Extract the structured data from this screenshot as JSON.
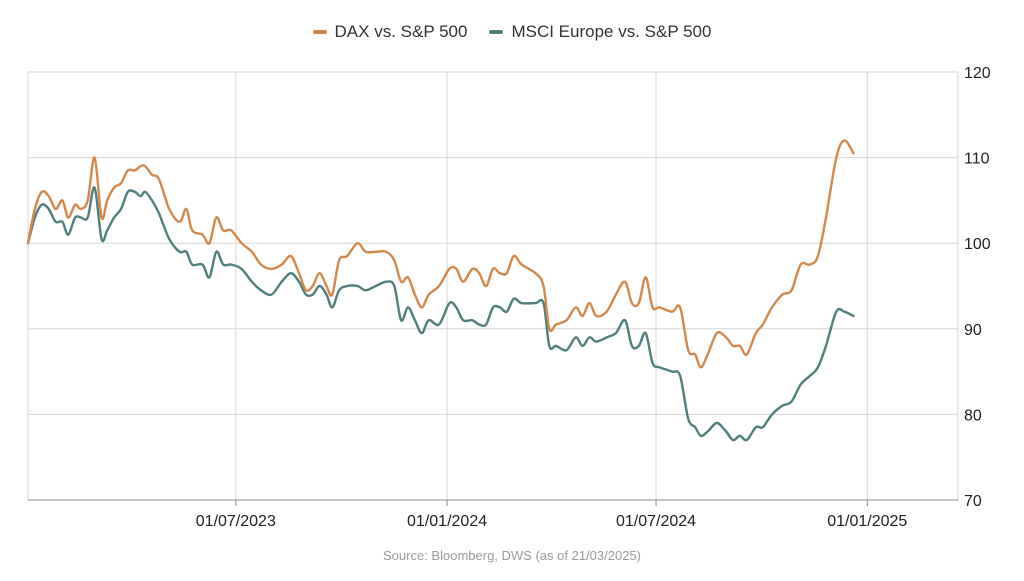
{
  "source": "Source: Bloomberg, DWS (as of 21/03/2025)",
  "colors": {
    "dax": "#d4874a",
    "msci": "#4f7f7d",
    "grid": "#d6d6d6"
  },
  "chart_data": {
    "type": "line",
    "title": "",
    "xlabel": "",
    "ylabel": "",
    "ylim": [
      70,
      120
    ],
    "y_ticks": [
      70,
      80,
      90,
      100,
      110,
      120
    ],
    "y_axis_side": "right",
    "x_range": [
      "2023-01-01",
      "2025-03-21"
    ],
    "x_ticks": [
      {
        "date": "2023-07-01",
        "label": "01/07/2023"
      },
      {
        "date": "2024-01-01",
        "label": "01/01/2024"
      },
      {
        "date": "2024-07-01",
        "label": "01/07/2024"
      },
      {
        "date": "2025-01-01",
        "label": "01/01/2025"
      }
    ],
    "legend_position": "top-center",
    "grid": true,
    "series": [
      {
        "name": "DAX vs. S&P 500",
        "color": "#d4874a",
        "points": [
          [
            "2023-01-01",
            100.0
          ],
          [
            "2023-01-07",
            104.0
          ],
          [
            "2023-01-13",
            106.0
          ],
          [
            "2023-01-19",
            105.5
          ],
          [
            "2023-01-25",
            104.0
          ],
          [
            "2023-01-31",
            105.0
          ],
          [
            "2023-02-05",
            103.0
          ],
          [
            "2023-02-11",
            104.5
          ],
          [
            "2023-02-16",
            104.0
          ],
          [
            "2023-02-22",
            105.0
          ],
          [
            "2023-02-28",
            110.0
          ],
          [
            "2023-03-06",
            103.0
          ],
          [
            "2023-03-11",
            105.0
          ],
          [
            "2023-03-17",
            106.5
          ],
          [
            "2023-03-23",
            107.0
          ],
          [
            "2023-03-29",
            108.5
          ],
          [
            "2023-04-04",
            108.5
          ],
          [
            "2023-04-09",
            109.0
          ],
          [
            "2023-04-13",
            109.0
          ],
          [
            "2023-04-19",
            108.0
          ],
          [
            "2023-04-25",
            107.5
          ],
          [
            "2023-05-04",
            104.0
          ],
          [
            "2023-05-13",
            102.5
          ],
          [
            "2023-05-19",
            104.0
          ],
          [
            "2023-05-24",
            101.5
          ],
          [
            "2023-06-02",
            101.0
          ],
          [
            "2023-06-08",
            100.0
          ],
          [
            "2023-06-14",
            103.0
          ],
          [
            "2023-06-20",
            101.5
          ],
          [
            "2023-06-27",
            101.5
          ],
          [
            "2023-07-06",
            100.0
          ],
          [
            "2023-07-15",
            99.0
          ],
          [
            "2023-07-23",
            97.5
          ],
          [
            "2023-08-01",
            97.0
          ],
          [
            "2023-08-10",
            97.5
          ],
          [
            "2023-08-18",
            98.5
          ],
          [
            "2023-08-25",
            96.5
          ],
          [
            "2023-08-31",
            94.5
          ],
          [
            "2023-09-06",
            95.0
          ],
          [
            "2023-09-12",
            96.5
          ],
          [
            "2023-09-18",
            95.0
          ],
          [
            "2023-09-23",
            94.0
          ],
          [
            "2023-09-29",
            98.0
          ],
          [
            "2023-10-06",
            98.5
          ],
          [
            "2023-10-15",
            100.0
          ],
          [
            "2023-10-22",
            99.0
          ],
          [
            "2023-10-31",
            99.0
          ],
          [
            "2023-11-09",
            99.0
          ],
          [
            "2023-11-16",
            98.0
          ],
          [
            "2023-11-22",
            95.5
          ],
          [
            "2023-11-28",
            96.0
          ],
          [
            "2023-12-04",
            94.0
          ],
          [
            "2023-12-10",
            92.5
          ],
          [
            "2023-12-16",
            94.0
          ],
          [
            "2023-12-25",
            95.0
          ],
          [
            "2024-01-03",
            97.0
          ],
          [
            "2024-01-09",
            97.0
          ],
          [
            "2024-01-15",
            95.5
          ],
          [
            "2024-01-23",
            97.0
          ],
          [
            "2024-01-29",
            96.5
          ],
          [
            "2024-02-04",
            95.0
          ],
          [
            "2024-02-10",
            97.0
          ],
          [
            "2024-02-16",
            96.5
          ],
          [
            "2024-02-22",
            96.5
          ],
          [
            "2024-02-28",
            98.5
          ],
          [
            "2024-03-06",
            97.5
          ],
          [
            "2024-03-18",
            96.5
          ],
          [
            "2024-03-25",
            95.0
          ],
          [
            "2024-03-30",
            90.0
          ],
          [
            "2024-04-05",
            90.5
          ],
          [
            "2024-04-14",
            91.0
          ],
          [
            "2024-04-22",
            92.5
          ],
          [
            "2024-04-28",
            91.5
          ],
          [
            "2024-05-04",
            93.0
          ],
          [
            "2024-05-10",
            91.5
          ],
          [
            "2024-05-19",
            92.0
          ],
          [
            "2024-05-27",
            94.0
          ],
          [
            "2024-06-04",
            95.5
          ],
          [
            "2024-06-10",
            93.0
          ],
          [
            "2024-06-16",
            93.0
          ],
          [
            "2024-06-22",
            96.0
          ],
          [
            "2024-06-28",
            92.5
          ],
          [
            "2024-07-04",
            92.5
          ],
          [
            "2024-07-15",
            92.0
          ],
          [
            "2024-07-22",
            92.5
          ],
          [
            "2024-07-29",
            87.5
          ],
          [
            "2024-08-04",
            87.0
          ],
          [
            "2024-08-09",
            85.5
          ],
          [
            "2024-08-15",
            87.0
          ],
          [
            "2024-08-23",
            89.5
          ],
          [
            "2024-08-31",
            89.0
          ],
          [
            "2024-09-06",
            88.0
          ],
          [
            "2024-09-12",
            88.0
          ],
          [
            "2024-09-18",
            87.0
          ],
          [
            "2024-09-26",
            89.5
          ],
          [
            "2024-10-02",
            90.5
          ],
          [
            "2024-10-10",
            92.5
          ],
          [
            "2024-10-19",
            94.0
          ],
          [
            "2024-10-27",
            94.5
          ],
          [
            "2024-11-04",
            97.5
          ],
          [
            "2024-11-12",
            97.5
          ],
          [
            "2024-11-19",
            98.5
          ],
          [
            "2024-11-26",
            103.0
          ],
          [
            "2024-12-05",
            110.0
          ],
          [
            "2024-12-12",
            112.0
          ],
          [
            "2024-12-20",
            110.5
          ]
        ]
      },
      {
        "name": "MSCI Europe vs. S&P 500",
        "color": "#4f7f7d",
        "points": [
          [
            "2023-01-01",
            100.0
          ],
          [
            "2023-01-07",
            103.0
          ],
          [
            "2023-01-13",
            104.5
          ],
          [
            "2023-01-19",
            104.0
          ],
          [
            "2023-01-25",
            102.5
          ],
          [
            "2023-01-31",
            102.5
          ],
          [
            "2023-02-05",
            101.0
          ],
          [
            "2023-02-11",
            103.0
          ],
          [
            "2023-02-16",
            103.0
          ],
          [
            "2023-02-22",
            103.0
          ],
          [
            "2023-02-28",
            106.5
          ],
          [
            "2023-03-06",
            100.5
          ],
          [
            "2023-03-11",
            101.5
          ],
          [
            "2023-03-17",
            103.0
          ],
          [
            "2023-03-23",
            104.0
          ],
          [
            "2023-03-29",
            106.0
          ],
          [
            "2023-04-04",
            106.0
          ],
          [
            "2023-04-09",
            105.5
          ],
          [
            "2023-04-13",
            106.0
          ],
          [
            "2023-04-19",
            105.0
          ],
          [
            "2023-04-25",
            103.5
          ],
          [
            "2023-05-04",
            100.5
          ],
          [
            "2023-05-13",
            99.0
          ],
          [
            "2023-05-19",
            99.0
          ],
          [
            "2023-05-24",
            97.5
          ],
          [
            "2023-06-02",
            97.5
          ],
          [
            "2023-06-08",
            96.0
          ],
          [
            "2023-06-14",
            99.0
          ],
          [
            "2023-06-20",
            97.5
          ],
          [
            "2023-06-27",
            97.5
          ],
          [
            "2023-07-06",
            97.0
          ],
          [
            "2023-07-15",
            95.5
          ],
          [
            "2023-07-23",
            94.5
          ],
          [
            "2023-08-01",
            94.0
          ],
          [
            "2023-08-10",
            95.5
          ],
          [
            "2023-08-18",
            96.5
          ],
          [
            "2023-08-25",
            95.5
          ],
          [
            "2023-08-31",
            94.0
          ],
          [
            "2023-09-06",
            94.0
          ],
          [
            "2023-09-12",
            95.0
          ],
          [
            "2023-09-18",
            94.0
          ],
          [
            "2023-09-23",
            92.5
          ],
          [
            "2023-09-29",
            94.5
          ],
          [
            "2023-10-06",
            95.0
          ],
          [
            "2023-10-15",
            95.0
          ],
          [
            "2023-10-22",
            94.5
          ],
          [
            "2023-10-31",
            95.0
          ],
          [
            "2023-11-09",
            95.5
          ],
          [
            "2023-11-16",
            95.0
          ],
          [
            "2023-11-22",
            91.0
          ],
          [
            "2023-11-28",
            92.5
          ],
          [
            "2023-12-04",
            91.0
          ],
          [
            "2023-12-10",
            89.5
          ],
          [
            "2023-12-16",
            91.0
          ],
          [
            "2023-12-25",
            90.5
          ],
          [
            "2024-01-03",
            93.0
          ],
          [
            "2024-01-09",
            92.5
          ],
          [
            "2024-01-15",
            91.0
          ],
          [
            "2024-01-23",
            91.0
          ],
          [
            "2024-01-29",
            90.5
          ],
          [
            "2024-02-04",
            90.5
          ],
          [
            "2024-02-10",
            92.5
          ],
          [
            "2024-02-16",
            92.5
          ],
          [
            "2024-02-22",
            92.0
          ],
          [
            "2024-02-28",
            93.5
          ],
          [
            "2024-03-06",
            93.0
          ],
          [
            "2024-03-18",
            93.0
          ],
          [
            "2024-03-25",
            93.0
          ],
          [
            "2024-03-30",
            88.0
          ],
          [
            "2024-04-05",
            88.0
          ],
          [
            "2024-04-14",
            87.5
          ],
          [
            "2024-04-22",
            89.0
          ],
          [
            "2024-04-28",
            88.0
          ],
          [
            "2024-05-04",
            89.0
          ],
          [
            "2024-05-10",
            88.5
          ],
          [
            "2024-05-19",
            89.0
          ],
          [
            "2024-05-27",
            89.5
          ],
          [
            "2024-06-04",
            91.0
          ],
          [
            "2024-06-10",
            88.0
          ],
          [
            "2024-06-16",
            88.0
          ],
          [
            "2024-06-22",
            89.5
          ],
          [
            "2024-06-28",
            86.0
          ],
          [
            "2024-07-04",
            85.5
          ],
          [
            "2024-07-15",
            85.0
          ],
          [
            "2024-07-22",
            84.5
          ],
          [
            "2024-07-29",
            79.5
          ],
          [
            "2024-08-04",
            78.5
          ],
          [
            "2024-08-09",
            77.5
          ],
          [
            "2024-08-15",
            78.0
          ],
          [
            "2024-08-23",
            79.0
          ],
          [
            "2024-08-31",
            78.0
          ],
          [
            "2024-09-06",
            77.0
          ],
          [
            "2024-09-12",
            77.5
          ],
          [
            "2024-09-18",
            77.0
          ],
          [
            "2024-09-26",
            78.5
          ],
          [
            "2024-10-02",
            78.5
          ],
          [
            "2024-10-10",
            80.0
          ],
          [
            "2024-10-19",
            81.0
          ],
          [
            "2024-10-27",
            81.5
          ],
          [
            "2024-11-04",
            83.5
          ],
          [
            "2024-11-12",
            84.5
          ],
          [
            "2024-11-19",
            85.5
          ],
          [
            "2024-11-26",
            88.0
          ],
          [
            "2024-12-05",
            92.0
          ],
          [
            "2024-12-12",
            92.0
          ],
          [
            "2024-12-20",
            91.5
          ]
        ]
      }
    ]
  }
}
